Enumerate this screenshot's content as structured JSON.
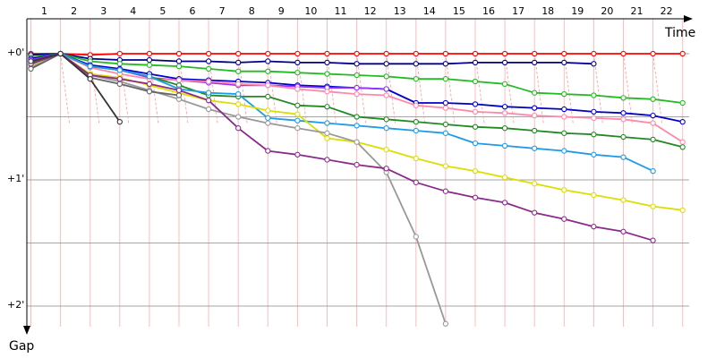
{
  "chart_data": {
    "type": "line",
    "xlabel": "Time",
    "ylabel": "Gap",
    "x_ticks": [
      "1",
      "2",
      "3",
      "4",
      "5",
      "6",
      "7",
      "8",
      "9",
      "10",
      "11",
      "12",
      "13",
      "14",
      "15",
      "16",
      "17",
      "18",
      "19",
      "20",
      "21",
      "22"
    ],
    "y_ticks": [
      {
        "label": "+0'",
        "value": 0
      },
      {
        "label": "+1'",
        "value": 1
      },
      {
        "label": "+2'",
        "value": 2
      }
    ],
    "xlim": [
      0,
      23
    ],
    "ylim": [
      0,
      2.3
    ],
    "grid": true,
    "series": [
      {
        "color": "#ff0000",
        "x": [
          1,
          2,
          3,
          4,
          5,
          6,
          7,
          8,
          9,
          10,
          11,
          12,
          13,
          14,
          15,
          16,
          17,
          18,
          19,
          20,
          21,
          22,
          23
        ],
        "y": [
          0.0,
          0.0,
          0.01,
          0.0,
          0.0,
          0.0,
          0.0,
          0.0,
          0.0,
          0.0,
          0.0,
          0.0,
          0.0,
          0.0,
          0.0,
          0.0,
          0.0,
          0.0,
          0.0,
          0.0,
          0.0,
          0.0,
          0.0
        ]
      },
      {
        "color": "#00008b",
        "x": [
          1,
          2,
          3,
          4,
          5,
          6,
          7,
          8,
          9,
          10,
          11,
          12,
          13,
          14,
          15,
          16,
          17,
          18,
          19,
          20
        ],
        "y": [
          0.01,
          0.0,
          0.04,
          0.05,
          0.05,
          0.06,
          0.06,
          0.07,
          0.06,
          0.07,
          0.07,
          0.08,
          0.08,
          0.08,
          0.08,
          0.07,
          0.07,
          0.07,
          0.07,
          0.08
        ]
      },
      {
        "color": "#22bb22",
        "x": [
          1,
          2,
          3,
          4,
          5,
          6,
          7,
          8,
          9,
          10,
          11,
          12,
          13,
          14,
          15,
          16,
          17,
          18,
          19,
          20,
          21,
          22,
          23
        ],
        "y": [
          0.03,
          0.0,
          0.06,
          0.08,
          0.09,
          0.1,
          0.12,
          0.14,
          0.14,
          0.15,
          0.16,
          0.17,
          0.18,
          0.2,
          0.2,
          0.22,
          0.24,
          0.31,
          0.32,
          0.33,
          0.35,
          0.36,
          0.39
        ]
      },
      {
        "color": "#0000cc",
        "x": [
          1,
          2,
          3,
          4,
          5,
          6,
          7,
          8,
          9,
          10,
          11,
          12,
          13,
          14,
          15,
          16,
          17,
          18,
          19,
          20,
          21,
          22,
          23
        ],
        "y": [
          0.04,
          0.0,
          0.09,
          0.12,
          0.16,
          0.2,
          0.21,
          0.22,
          0.23,
          0.25,
          0.26,
          0.27,
          0.28,
          0.39,
          0.39,
          0.4,
          0.42,
          0.43,
          0.44,
          0.46,
          0.47,
          0.49,
          0.54
        ]
      },
      {
        "color": "#9933ff",
        "x": [
          1,
          2,
          3,
          4,
          5,
          6,
          7,
          8,
          9,
          10,
          11,
          12,
          13
        ],
        "y": [
          0.05,
          0.0,
          0.1,
          0.13,
          0.19,
          0.21,
          0.23,
          0.25,
          0.25,
          0.26,
          0.27,
          0.27,
          0.28
        ]
      },
      {
        "color": "#ff88aa",
        "x": [
          1,
          2,
          3,
          4,
          5,
          6,
          7,
          8,
          9,
          10,
          11,
          12,
          13,
          14,
          15,
          16,
          17,
          18,
          19,
          20,
          21,
          22,
          23
        ],
        "y": [
          0.06,
          0.0,
          0.11,
          0.16,
          0.2,
          0.21,
          0.22,
          0.24,
          0.25,
          0.28,
          0.3,
          0.32,
          0.33,
          0.41,
          0.43,
          0.46,
          0.47,
          0.49,
          0.5,
          0.51,
          0.52,
          0.55,
          0.7
        ]
      },
      {
        "color": "#228822",
        "x": [
          1,
          2,
          3,
          4,
          5,
          6,
          7,
          8,
          9,
          10,
          11,
          12,
          13,
          14,
          15,
          16,
          17,
          18,
          19,
          20,
          21,
          22,
          23
        ],
        "y": [
          0.07,
          0.0,
          0.1,
          0.13,
          0.18,
          0.25,
          0.33,
          0.34,
          0.34,
          0.41,
          0.42,
          0.5,
          0.52,
          0.54,
          0.56,
          0.58,
          0.59,
          0.61,
          0.63,
          0.64,
          0.66,
          0.68,
          0.74
        ]
      },
      {
        "color": "#1e9be8",
        "x": [
          1,
          2,
          3,
          4,
          5,
          6,
          7,
          8,
          9,
          10,
          11,
          12,
          13,
          14,
          15,
          16,
          17,
          18,
          19,
          20,
          21,
          22
        ],
        "y": [
          0.09,
          0.0,
          0.1,
          0.13,
          0.18,
          0.28,
          0.31,
          0.32,
          0.51,
          0.53,
          0.55,
          0.57,
          0.59,
          0.61,
          0.63,
          0.71,
          0.73,
          0.75,
          0.77,
          0.8,
          0.82,
          0.93
        ]
      },
      {
        "color": "#dddd00",
        "x": [
          1,
          2,
          3,
          4,
          5,
          6,
          7,
          8,
          9,
          10,
          11,
          12,
          13,
          14,
          15,
          16,
          17,
          18,
          19,
          20,
          21,
          22,
          23
        ],
        "y": [
          0.1,
          0.0,
          0.16,
          0.19,
          0.25,
          0.31,
          0.37,
          0.4,
          0.45,
          0.48,
          0.67,
          0.7,
          0.76,
          0.83,
          0.89,
          0.93,
          0.98,
          1.03,
          1.08,
          1.12,
          1.16,
          1.21,
          1.24
        ]
      },
      {
        "color": "#999999",
        "x": [
          1,
          2,
          3,
          4,
          5,
          6,
          7,
          8,
          9,
          10,
          11,
          12,
          13,
          14,
          15
        ],
        "y": [
          0.11,
          0.0,
          0.17,
          0.22,
          0.29,
          0.36,
          0.44,
          0.5,
          0.55,
          0.59,
          0.63,
          0.7,
          0.94,
          1.45,
          2.14
        ]
      },
      {
        "color": "#666666",
        "x": [
          1,
          2,
          3,
          4,
          5,
          6
        ],
        "y": [
          0.12,
          0.0,
          0.19,
          0.24,
          0.3,
          0.33
        ]
      },
      {
        "color": "#8b2a8b",
        "x": [
          1,
          2,
          3,
          4,
          5,
          6,
          7,
          8,
          9,
          10,
          11,
          12,
          13,
          14,
          15,
          16,
          17,
          18,
          19,
          20,
          21,
          22
        ],
        "y": [
          0.08,
          0.0,
          0.17,
          0.2,
          0.24,
          0.29,
          0.37,
          0.59,
          0.77,
          0.8,
          0.84,
          0.88,
          0.91,
          1.02,
          1.09,
          1.14,
          1.18,
          1.26,
          1.31,
          1.37,
          1.41,
          1.48
        ]
      },
      {
        "color": "#333333",
        "x": [
          1,
          2,
          3,
          4
        ],
        "y": [
          0.06,
          0.0,
          0.2,
          0.54
        ]
      }
    ]
  }
}
